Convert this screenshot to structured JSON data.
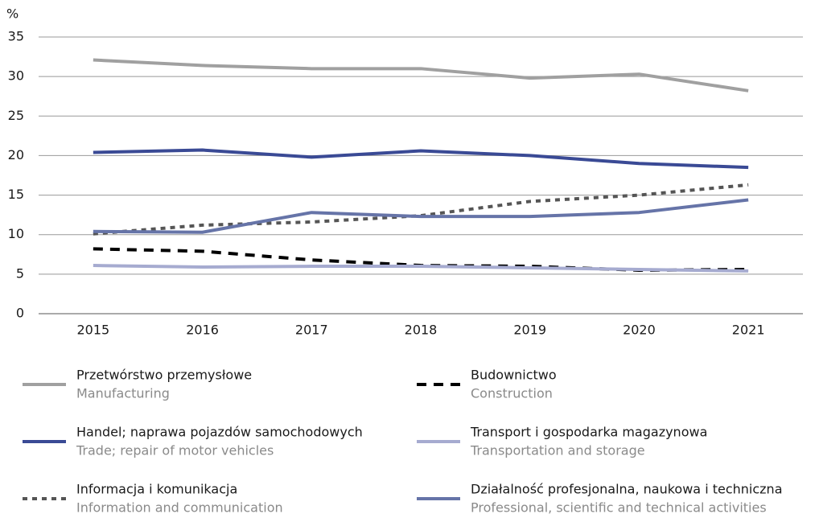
{
  "chart_data": {
    "type": "line",
    "y_unit": "%",
    "categories": [
      "2015",
      "2016",
      "2017",
      "2018",
      "2019",
      "2020",
      "2021"
    ],
    "ylim": [
      0,
      35
    ],
    "yticks": [
      0,
      5,
      10,
      15,
      20,
      25,
      30,
      35
    ],
    "grid": true,
    "series": [
      {
        "name": "Przetwórstwo przemysłowe",
        "subtitle": "Manufacturing",
        "color": "#a0a0a0",
        "dash": "solid",
        "values": [
          32.1,
          31.4,
          31.0,
          31.0,
          29.8,
          30.3,
          28.2
        ]
      },
      {
        "name": "Budownictwo",
        "subtitle": "Construction",
        "color": "#000000",
        "dash": "dashed",
        "values": [
          8.2,
          7.9,
          6.8,
          6.1,
          6.0,
          5.5,
          5.6
        ]
      },
      {
        "name": "Handel; naprawa pojazdów samochodowych",
        "subtitle": "Trade; repair of motor vehicles",
        "color": "#3a4a95",
        "dash": "solid",
        "values": [
          20.4,
          20.7,
          19.8,
          20.6,
          20.0,
          19.0,
          18.5
        ]
      },
      {
        "name": "Transport i gospodarka magazynowa",
        "subtitle": "Transportation and storage",
        "color": "#a6abd0",
        "dash": "solid",
        "values": [
          6.1,
          5.9,
          6.0,
          6.0,
          5.8,
          5.6,
          5.4
        ]
      },
      {
        "name": "Informacja i komunikacja",
        "subtitle": "Information and communication",
        "color": "#555555",
        "dash": "dotted",
        "values": [
          10.1,
          11.2,
          11.6,
          12.4,
          14.2,
          15.0,
          16.3
        ]
      },
      {
        "name": "Działalność profesjonalna, naukowa i techniczna",
        "subtitle": "Professional, scientific and technical activities",
        "color": "#6674a8",
        "dash": "solid",
        "values": [
          10.4,
          10.3,
          12.8,
          12.3,
          12.3,
          12.8,
          14.4
        ]
      }
    ]
  }
}
